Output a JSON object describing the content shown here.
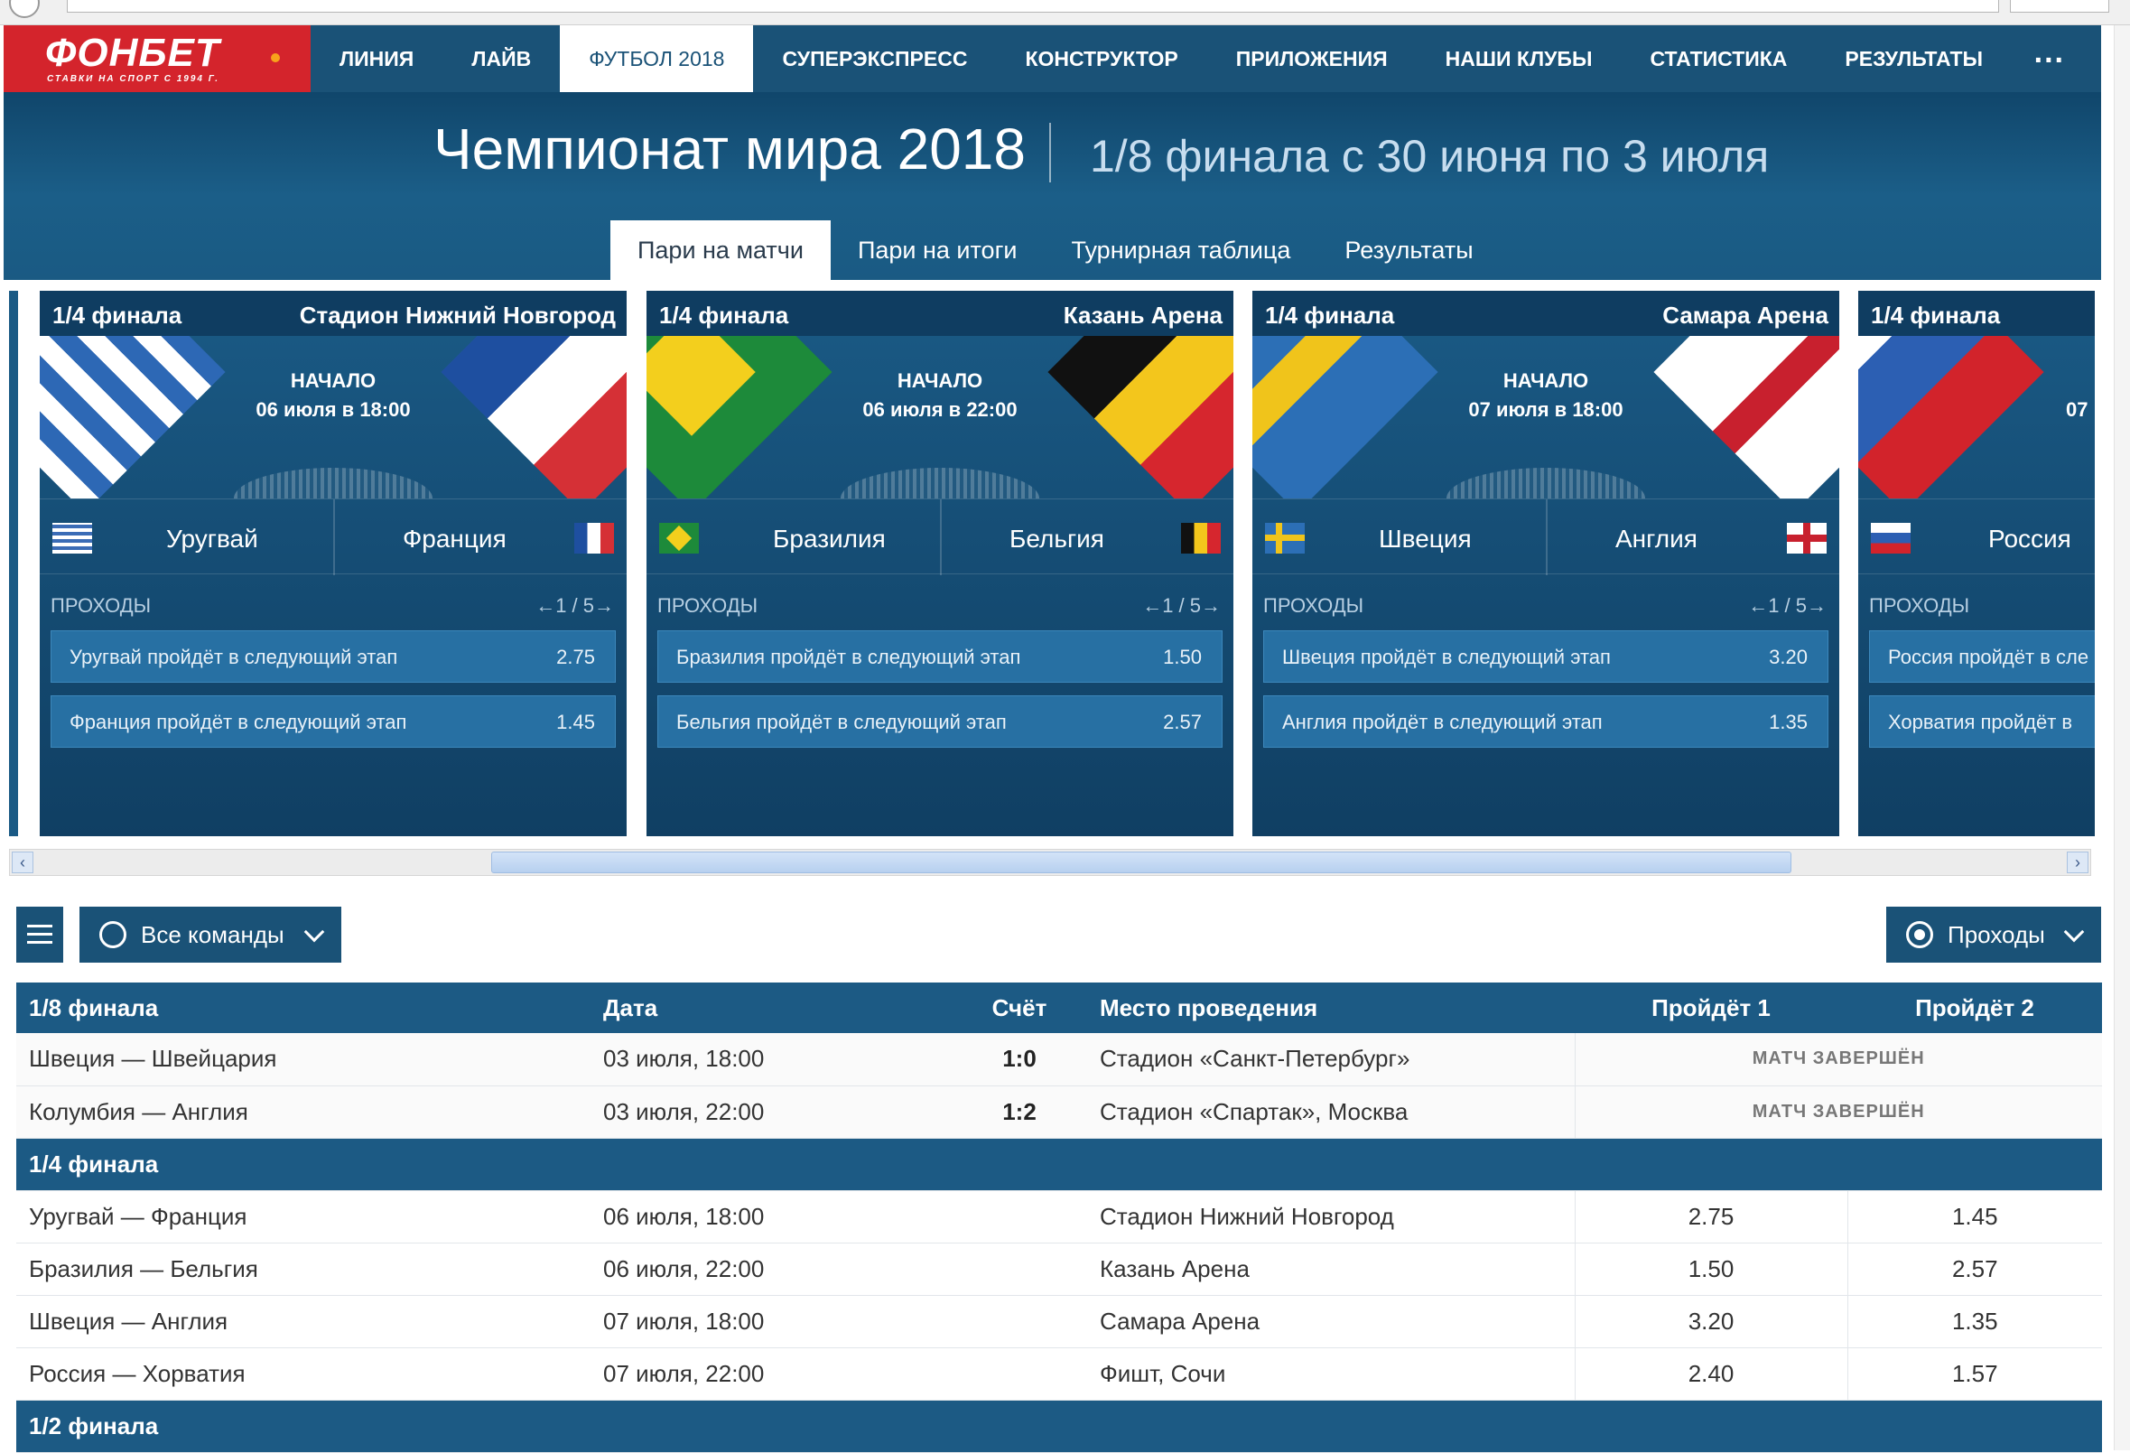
{
  "nav": {
    "logo": "ФОНБЕТ",
    "logo_tagline": "СТАВКИ НА СПОРТ С 1994 Г.",
    "items": [
      {
        "label": "ЛИНИЯ"
      },
      {
        "label": "ЛАЙВ"
      },
      {
        "label": "ФУТБОЛ 2018"
      },
      {
        "label": "СУПЕРЭКСПРЕСС"
      },
      {
        "label": "КОНСТРУКТОР"
      },
      {
        "label": "ПРИЛОЖЕНИЯ"
      },
      {
        "label": "НАШИ КЛУБЫ"
      },
      {
        "label": "СТАТИСТИКА"
      },
      {
        "label": "РЕЗУЛЬТАТЫ"
      }
    ],
    "more": "..."
  },
  "hero": {
    "title": "Чемпионат мира 2018",
    "subtitle": "1/8 финала с 30 июня по 3 июля",
    "tabs": [
      "Пари на матчи",
      "Пари на итоги",
      "Турнирная таблица",
      "Результаты"
    ]
  },
  "cards": [
    {
      "stage": "1/4 финала",
      "venue": "Стадион Нижний Новгород",
      "start_label": "НАЧАЛО",
      "start": "06 июля в 18:00",
      "team1": "Уругвай",
      "team2": "Франция",
      "market": "ПРОХОДЫ",
      "pager": "←1 / 5→",
      "odds": [
        {
          "name": "Уругвай пройдёт в следующий этап",
          "value": "2.75"
        },
        {
          "name": "Франция пройдёт в следующий этап",
          "value": "1.45"
        }
      ]
    },
    {
      "stage": "1/4 финала",
      "venue": "Казань Арена",
      "start_label": "НАЧАЛО",
      "start": "06 июля в 22:00",
      "team1": "Бразилия",
      "team2": "Бельгия",
      "market": "ПРОХОДЫ",
      "pager": "←1 / 5→",
      "odds": [
        {
          "name": "Бразилия пройдёт в следующий этап",
          "value": "1.50"
        },
        {
          "name": "Бельгия пройдёт в следующий этап",
          "value": "2.57"
        }
      ]
    },
    {
      "stage": "1/4 финала",
      "venue": "Самара Арена",
      "start_label": "НАЧАЛО",
      "start": "07 июля в 18:00",
      "team1": "Швеция",
      "team2": "Англия",
      "market": "ПРОХОДЫ",
      "pager": "←1 / 5→",
      "odds": [
        {
          "name": "Швеция пройдёт в следующий этап",
          "value": "3.20"
        },
        {
          "name": "Англия пройдёт в следующий этап",
          "value": "1.35"
        }
      ]
    },
    {
      "stage": "1/4 финала",
      "start_partial": "07",
      "team1": "Россия",
      "market": "ПРОХОДЫ",
      "odds": [
        {
          "name": "Россия пройдёт в сле"
        },
        {
          "name": "Хорватия пройдёт в"
        }
      ]
    }
  ],
  "filters": {
    "teams": "Все команды",
    "market": "Проходы"
  },
  "table": {
    "headers": [
      "1/8 финала",
      "Дата",
      "Счёт",
      "Место проведения",
      "Пройдёт 1",
      "Пройдёт 2"
    ],
    "r16": [
      {
        "match": "Швеция — Швейцария",
        "date": "03 июля, 18:00",
        "score": "1:0",
        "venue": "Стадион «Санкт-Петербург»",
        "status": "МАТЧ ЗАВЕРШЁН"
      },
      {
        "match": "Колумбия — Англия",
        "date": "03 июля, 22:00",
        "score": "1:2",
        "venue": "Стадион «Спартак», Москва",
        "status": "МАТЧ ЗАВЕРШЁН"
      }
    ],
    "qf_label": "1/4 финала",
    "qf": [
      {
        "match": "Уругвай — Франция",
        "date": "06 июля, 18:00",
        "venue": "Стадион Нижний Новгород",
        "p1": "2.75",
        "p2": "1.45"
      },
      {
        "match": "Бразилия — Бельгия",
        "date": "06 июля, 22:00",
        "venue": "Казань Арена",
        "p1": "1.50",
        "p2": "2.57"
      },
      {
        "match": "Швеция — Англия",
        "date": "07 июля, 18:00",
        "venue": "Самара Арена",
        "p1": "3.20",
        "p2": "1.35"
      },
      {
        "match": "Россия — Хорватия",
        "date": "07 июля, 22:00",
        "venue": "Фишт, Сочи",
        "p1": "2.40",
        "p2": "1.57"
      }
    ],
    "sf_label": "1/2 финала"
  },
  "colors": {
    "brand_red": "#d4242c",
    "nav_blue": "#1a5277",
    "card_odd": "#2770a3"
  }
}
